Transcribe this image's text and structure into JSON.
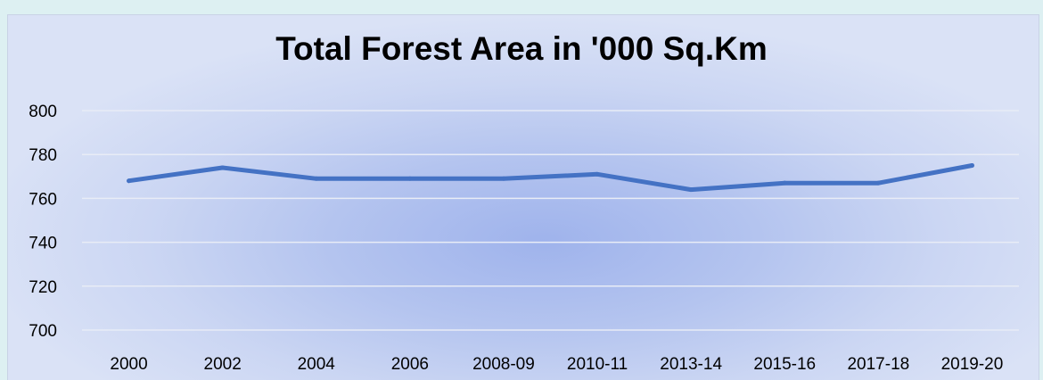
{
  "chart_data": {
    "type": "line",
    "title": "Total Forest Area in '000 Sq.Km",
    "xlabel": "",
    "ylabel": "",
    "categories": [
      "2000",
      "2002",
      "2004",
      "2006",
      "2008-09",
      "2010-11",
      "2013-14",
      "2015-16",
      "2017-18",
      "2019-20"
    ],
    "series": [
      {
        "values": [
          768,
          774,
          769,
          769,
          769,
          771,
          764,
          767,
          767,
          775
        ]
      }
    ],
    "ylim": [
      700,
      800
    ],
    "yticks": [
      800,
      780,
      760,
      740,
      720,
      700
    ],
    "grid": true,
    "legend": "none",
    "colors": {
      "line": "#4472c4",
      "grid": "#e8ecf6"
    }
  }
}
